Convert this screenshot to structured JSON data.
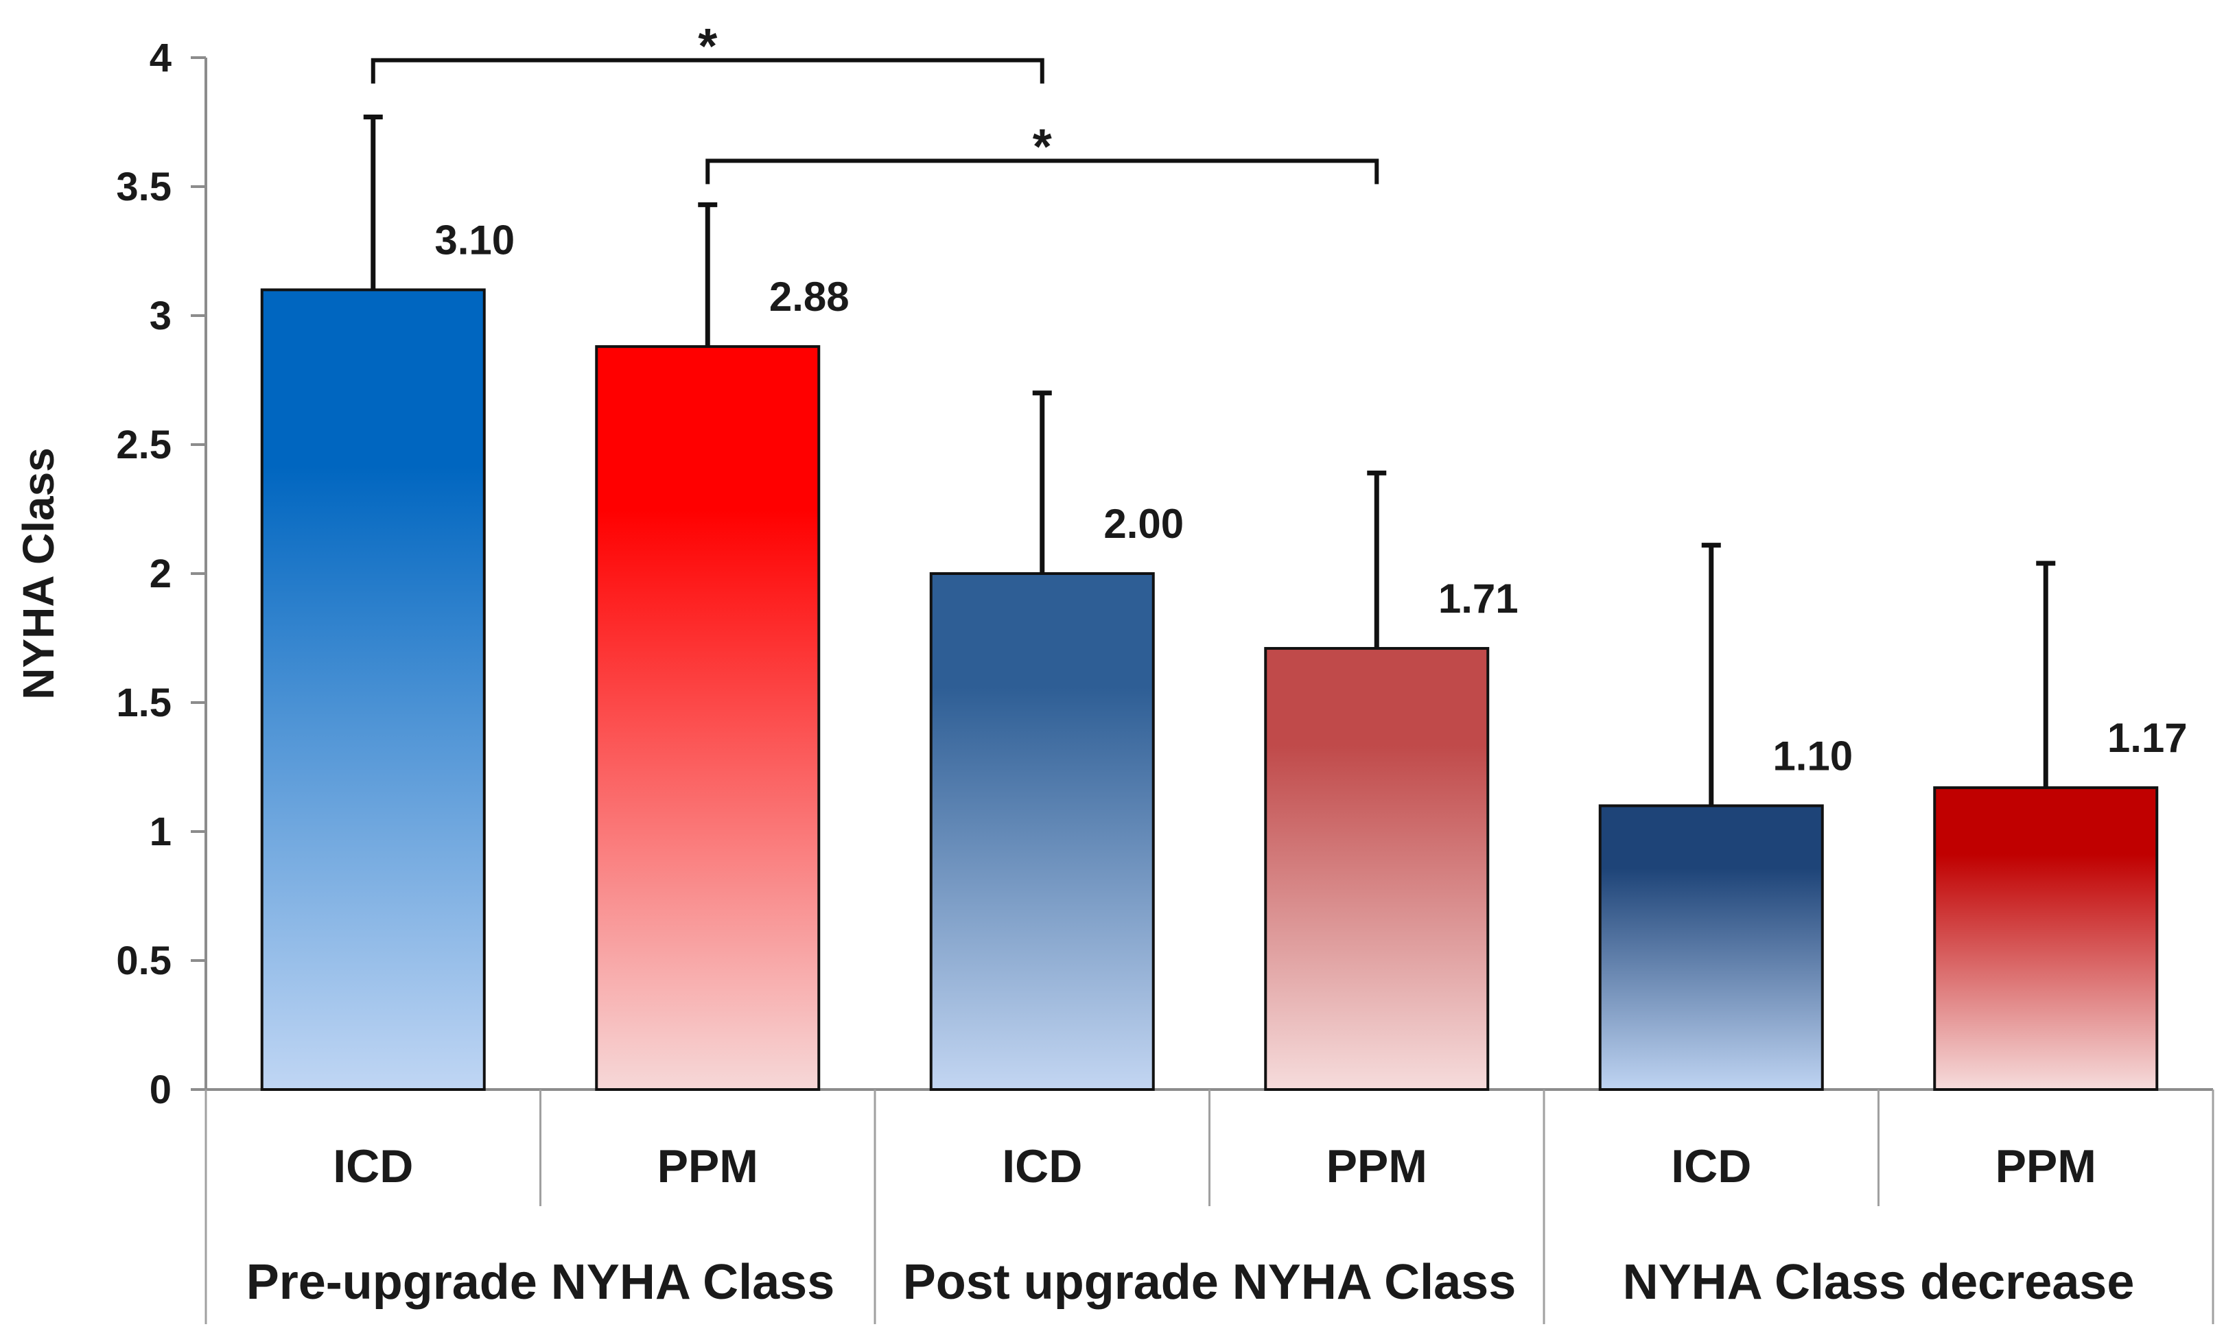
{
  "chart_data": {
    "type": "bar",
    "title": "",
    "xlabel": "",
    "ylabel": "NYHA Class",
    "ylim": [
      0,
      4
    ],
    "yticks": [
      "0",
      "0.5",
      "1",
      "1.5",
      "2",
      "2.5",
      "3",
      "3.5",
      "4"
    ],
    "grid": false,
    "legend": "none",
    "groups": [
      {
        "label": "Pre-upgrade NYHA Class",
        "bars": [
          {
            "category": "ICD",
            "value": 3.1,
            "value_label": "3.10",
            "error": 0.67,
            "color_top": "#0066c0",
            "color_bottom": "#c0d6f4"
          },
          {
            "category": "PPM",
            "value": 2.88,
            "value_label": "2.88",
            "error": 0.55,
            "color_top": "#ff0000",
            "color_bottom": "#f6d8d8"
          }
        ]
      },
      {
        "label": "Post upgrade NYHA Class",
        "bars": [
          {
            "category": "ICD",
            "value": 2.0,
            "value_label": "2.00",
            "error": 0.7,
            "color_top": "#2e5e95",
            "color_bottom": "#c3d6f2"
          },
          {
            "category": "PPM",
            "value": 1.71,
            "value_label": "1.71",
            "error": 0.68,
            "color_top": "#c04a4a",
            "color_bottom": "#f6dcdc"
          }
        ]
      },
      {
        "label": "NYHA Class decrease",
        "bars": [
          {
            "category": "ICD",
            "value": 1.1,
            "value_label": "1.10",
            "error": 1.01,
            "color_top": "#1e4478",
            "color_bottom": "#bfd4f2"
          },
          {
            "category": "PPM",
            "value": 1.17,
            "value_label": "1.17",
            "error": 0.87,
            "color_top": "#c00000",
            "color_bottom": "#f6dcdc"
          }
        ]
      }
    ],
    "annotations": [
      {
        "text": "*",
        "from_bar": 0,
        "to_bar": 2,
        "level": 3.99
      },
      {
        "text": "*",
        "from_bar": 1,
        "to_bar": 3,
        "level": 3.6
      }
    ]
  }
}
